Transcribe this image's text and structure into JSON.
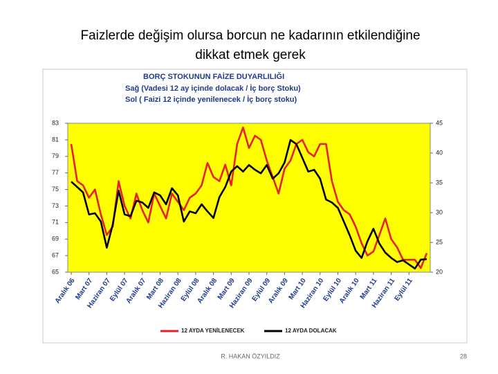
{
  "slide": {
    "title_lines": [
      "Faizlerde değişim olursa borcun ne kadarının etkilendiğine",
      "dikkat etmek gerek"
    ],
    "footer": "R. HAKAN ÖZYILDIZ",
    "page_number": "28"
  },
  "chart_data": {
    "type": "line",
    "title_lines": [
      "BORÇ STOKUNUN FAİZE DUYARLILIĞI",
      "Sağ (Vadesi 12 ay içinde dolacak / İç borç Stoku)",
      "Sol ( Faizi 12 içinde yenilenecek / İç borç stoku)"
    ],
    "categories": [
      "Aralık 06",
      null,
      null,
      "Mart 07",
      null,
      null,
      "Haziran 07",
      null,
      null,
      "Eylül 07",
      null,
      null,
      "Aralık 07",
      null,
      null,
      "Mart 08",
      null,
      null,
      "Haziran 08",
      null,
      null,
      "Eylül 08",
      null,
      null,
      "Aralık 08",
      null,
      null,
      "Mart 09",
      null,
      null,
      "Haziran 09",
      null,
      null,
      "Eylül 09",
      null,
      null,
      "Aralık 09",
      null,
      null,
      "Mart 10",
      null,
      null,
      "Haziran 10",
      null,
      null,
      "Eylül 10",
      null,
      null,
      "Aralık 10",
      null,
      null,
      "Mart 11",
      null,
      null,
      "Haziran 11",
      null,
      null,
      "Eylül 11",
      null,
      null,
      null
    ],
    "series": [
      {
        "name": "12 AYDA YENİLENECEK",
        "color": "#e8202a",
        "axis": "y",
        "values": [
          80.5,
          76,
          75.5,
          74,
          75,
          72,
          69.5,
          70.5,
          76,
          73,
          71.5,
          74.5,
          72.5,
          71,
          74.5,
          73,
          71.5,
          74.5,
          73.5,
          72.5,
          74,
          74.5,
          75.5,
          78.2,
          76.5,
          76,
          78,
          75.5,
          80.5,
          82.5,
          80,
          81.5,
          81,
          78.5,
          76.5,
          74.5,
          77.5,
          78.5,
          80.5,
          81,
          79.5,
          79,
          80.5,
          80.5,
          76,
          73.5,
          72.5,
          72,
          70.5,
          68.5,
          67,
          67.5,
          69.5,
          71.5,
          69,
          68,
          66.5,
          66.5,
          66.5,
          65.5,
          67.3
        ]
      },
      {
        "name": "12 AYDA DOLACAK",
        "color": "#000000",
        "axis": "y2",
        "values": [
          35.2,
          34.3,
          33.4,
          29.7,
          29.9,
          28.5,
          24.1,
          28,
          33.7,
          29.7,
          29.4,
          32,
          31.7,
          30.8,
          33.4,
          32.9,
          31.4,
          34.1,
          32.9,
          28.5,
          30.2,
          29.9,
          31.4,
          30.2,
          29.1,
          32.6,
          34.3,
          36.9,
          37.8,
          36.9,
          38,
          37.2,
          36.6,
          38,
          35.7,
          36.6,
          38.4,
          42.2,
          41.5,
          39.2,
          36.9,
          37.2,
          35.7,
          32.2,
          31.7,
          30.8,
          28.5,
          26.2,
          23.6,
          22.4,
          25.2,
          27.3,
          24.8,
          23.3,
          22.4,
          21.7,
          22,
          21.3,
          20.6,
          22.1,
          22.2
        ]
      }
    ],
    "ylim": [
      65,
      83
    ],
    "yticks": [
      65,
      67,
      69,
      71,
      73,
      75,
      77,
      79,
      81,
      83
    ],
    "y2lim": [
      20,
      45
    ],
    "y2ticks": [
      20,
      25,
      30,
      35,
      40,
      45
    ],
    "grid": false,
    "legend": "bottom",
    "plot_color": "#ffff00"
  }
}
